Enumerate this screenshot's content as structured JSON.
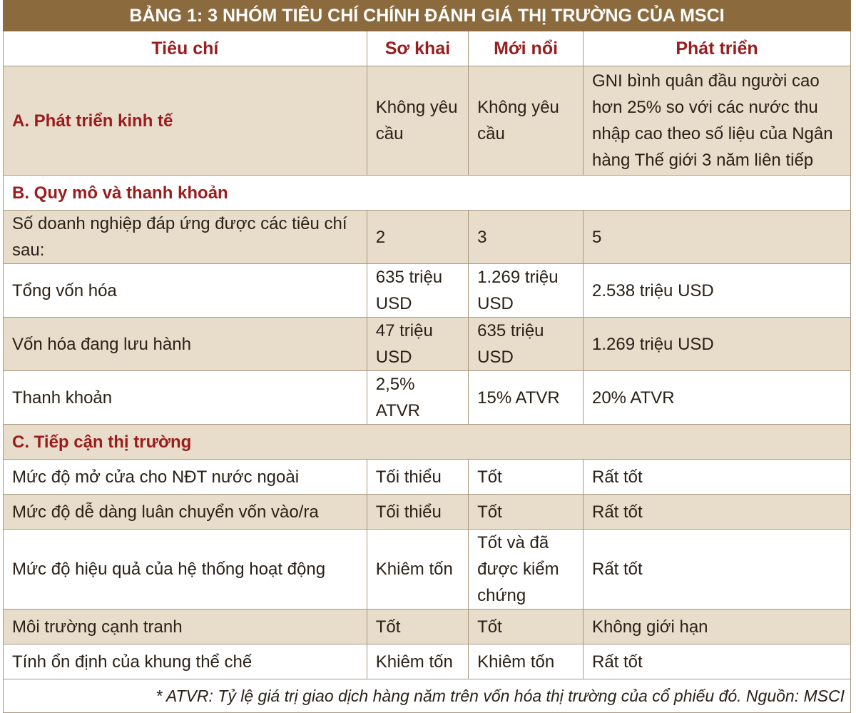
{
  "title": "BẢNG 1: 3 NHÓM TIÊU CHÍ CHÍNH ĐÁNH GIÁ THỊ TRƯỜNG CỦA MSCI",
  "headers": [
    "Tiêu chí",
    "Sơ khai",
    "Mới nổi",
    "Phát triển"
  ],
  "rows": [
    {
      "type": "data",
      "section": true,
      "bg": "beige",
      "cells": [
        "A. Phát triển kinh tế",
        "Không yêu cầu",
        "Không yêu cầu",
        "GNI bình quân đầu người cao hơn 25% so với các nước thu nhập cao theo số liệu của Ngân hàng Thế giới 3 năm liên tiếp"
      ]
    },
    {
      "type": "section",
      "bg": "white",
      "label": "B. Quy mô và thanh khoản"
    },
    {
      "type": "data",
      "bg": "beige",
      "cells": [
        "Số doanh nghiệp đáp ứng được các tiêu chí sau:",
        "2",
        "3",
        "5"
      ]
    },
    {
      "type": "data",
      "bg": "white",
      "cells": [
        "Tổng vốn hóa",
        "635 triệu USD",
        "1.269 triệu USD",
        "2.538 triệu USD"
      ]
    },
    {
      "type": "data",
      "bg": "beige",
      "cells": [
        "Vốn hóa đang lưu hành",
        "47 triệu USD",
        "635 triệu USD",
        "1.269 triệu USD"
      ]
    },
    {
      "type": "data",
      "bg": "white",
      "cells": [
        "Thanh khoản",
        "2,5% ATVR",
        "15% ATVR",
        "20% ATVR"
      ]
    },
    {
      "type": "section",
      "bg": "beige",
      "label": "C. Tiếp cận thị trường"
    },
    {
      "type": "data",
      "bg": "white",
      "cells": [
        "Mức độ mở cửa cho NĐT nước ngoài",
        "Tối thiểu",
        "Tốt",
        "Rất tốt"
      ]
    },
    {
      "type": "data",
      "bg": "beige",
      "cells": [
        "Mức độ dễ dàng luân chuyển vốn vào/ra",
        "Tối thiểu",
        "Tốt",
        "Rất tốt"
      ]
    },
    {
      "type": "data",
      "bg": "white",
      "cells": [
        "Mức độ hiệu quả của hệ thống hoạt động",
        "Khiêm tốn",
        "Tốt và đã được kiểm chứng",
        "Rất tốt"
      ]
    },
    {
      "type": "data",
      "bg": "beige",
      "cells": [
        "Môi trường cạnh tranh",
        "Tốt",
        "Tốt",
        "Không giới hạn"
      ]
    },
    {
      "type": "data",
      "bg": "white",
      "cells": [
        "Tính ổn định của khung thể chế",
        "Khiêm tốn",
        "Khiêm tốn",
        "Rất tốt"
      ]
    }
  ],
  "footnote": "* ATVR: Tỷ lệ giá trị giao dịch hàng năm trên vốn hóa thị trường của cổ phiếu đó. Nguồn: MSCI",
  "colors": {
    "title_bg": "#8b6a3e",
    "accent_text": "#9a1c1c",
    "row_beige": "#e8dccb"
  }
}
